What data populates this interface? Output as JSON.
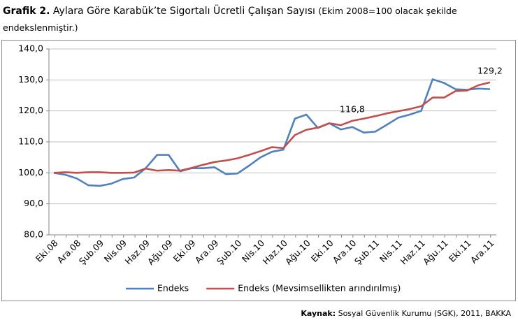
{
  "chart_data": {
    "type": "line",
    "title_label": "Grafik 2.",
    "title": "Aylara Göre Karabük’te Sigortalı Ücretli Çalışan Sayısı",
    "subtitle": "(Ekim 2008=100 olacak şekilde endekslenmiştir.)",
    "source_label": "Kaynak:",
    "source": "Sosyal Güvenlik Kurumu (SGK), 2011, BAKKA",
    "categories": [
      "Eki.08",
      null,
      "Ara.08",
      null,
      "Şub.09",
      null,
      "Nis.09",
      null,
      "Haz.09",
      null,
      "Ağu.09",
      null,
      "Eki.09",
      null,
      "Ara.09",
      null,
      "Şub.10",
      null,
      "Nis.10",
      null,
      "Haz.10",
      null,
      "Ağu.10",
      null,
      "Eki.10",
      null,
      "Ara.10",
      null,
      "Şub.11",
      null,
      "Nis.11",
      null,
      "Haz.11",
      null,
      "Ağu.11",
      null,
      "Eki.11",
      null,
      "Ara.11"
    ],
    "series": [
      {
        "name": "Endeks",
        "color": "#4f81bd",
        "values": [
          100,
          99.4,
          98.2,
          96,
          95.8,
          96.5,
          98,
          98.5,
          101.5,
          105.8,
          105.8,
          100.5,
          101.5,
          101.5,
          101.8,
          99.6,
          99.8,
          102.3,
          105,
          106.8,
          107.5,
          117.5,
          118.8,
          114.5,
          116,
          114,
          114.8,
          113,
          113.3,
          115.5,
          117.8,
          118.8,
          120,
          130.2,
          129,
          127,
          126.8,
          127.2,
          127
        ]
      },
      {
        "name": "Endeks (Mevsimsellikten arındırılmış)",
        "color": "#c0504d",
        "values": [
          100,
          100.2,
          100,
          100.2,
          100.2,
          100,
          100,
          100.1,
          101.4,
          100.7,
          100.9,
          100.7,
          101.6,
          102.6,
          103.5,
          104,
          104.7,
          105.8,
          107,
          108.3,
          108,
          112.2,
          113.9,
          114.6,
          116,
          115.4,
          116.8,
          117.5,
          118.3,
          119.2,
          119.9,
          120.6,
          121.5,
          124.3,
          124.3,
          126.4,
          126.6,
          128.3,
          129.2
        ],
        "value_labels": [
          null,
          null,
          null,
          null,
          null,
          null,
          null,
          null,
          null,
          null,
          null,
          null,
          null,
          null,
          null,
          null,
          null,
          null,
          null,
          null,
          null,
          null,
          null,
          null,
          null,
          null,
          "116,8",
          null,
          null,
          null,
          null,
          null,
          null,
          null,
          null,
          null,
          null,
          null,
          "129,2"
        ]
      }
    ],
    "ylim": [
      80,
      140
    ],
    "yticks": [
      {
        "value": 80,
        "label": "80,0"
      },
      {
        "value": 90,
        "label": "90,0"
      },
      {
        "value": 100,
        "label": "100,0"
      },
      {
        "value": 110,
        "label": "110,0"
      },
      {
        "value": 120,
        "label": "120,0"
      },
      {
        "value": 130,
        "label": "130,0"
      },
      {
        "value": 140,
        "label": "140,0"
      }
    ],
    "grid": true,
    "legend": "bottom"
  }
}
